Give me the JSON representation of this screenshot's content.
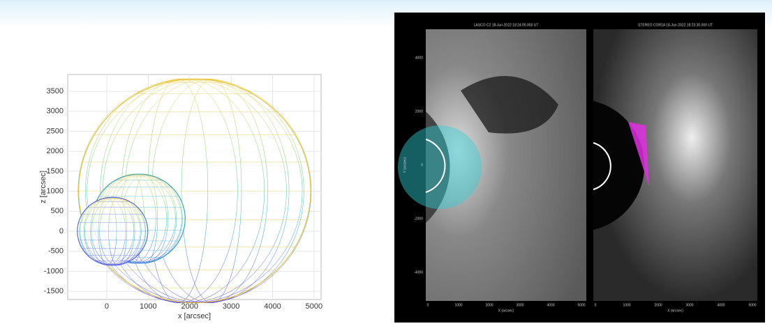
{
  "chart_data": {
    "type": "ellipse-mesh",
    "xlabel": "x [arcsec]",
    "ylabel": "z [arcsec]",
    "x": [
      2120,
      775,
      140
    ],
    "values": [
      1010,
      315,
      0
    ],
    "sizes": [
      2800,
      1115,
      850
    ],
    "colors": [
      "#e8c040",
      "#3aa8d8",
      "#5a6ee8"
    ],
    "xlim": [
      -943,
      5170
    ],
    "ylim": [
      -1707,
      3920
    ],
    "xticks": [
      0,
      1000,
      2000,
      3000,
      4000,
      5000
    ],
    "yticks": [
      -1500,
      -1000,
      -500,
      0,
      500,
      1000,
      1500,
      2000,
      2500,
      3000,
      3500
    ],
    "grid": true
  },
  "images": {
    "titles": [
      "LASCO C2 18-Jun-2022 18:24:05.000 UT",
      "STEREO COR2A 18-Jun-2022 18:23:30.000 UT"
    ],
    "yticks": [
      "4000",
      "2000",
      "0",
      "-2000",
      "-4000"
    ],
    "xticks": [
      "0",
      "1000",
      "2000",
      "3000",
      "4000",
      "5000"
    ],
    "xlabel": "X (arcsec)",
    "ylabel": "Y (arcsec)"
  }
}
